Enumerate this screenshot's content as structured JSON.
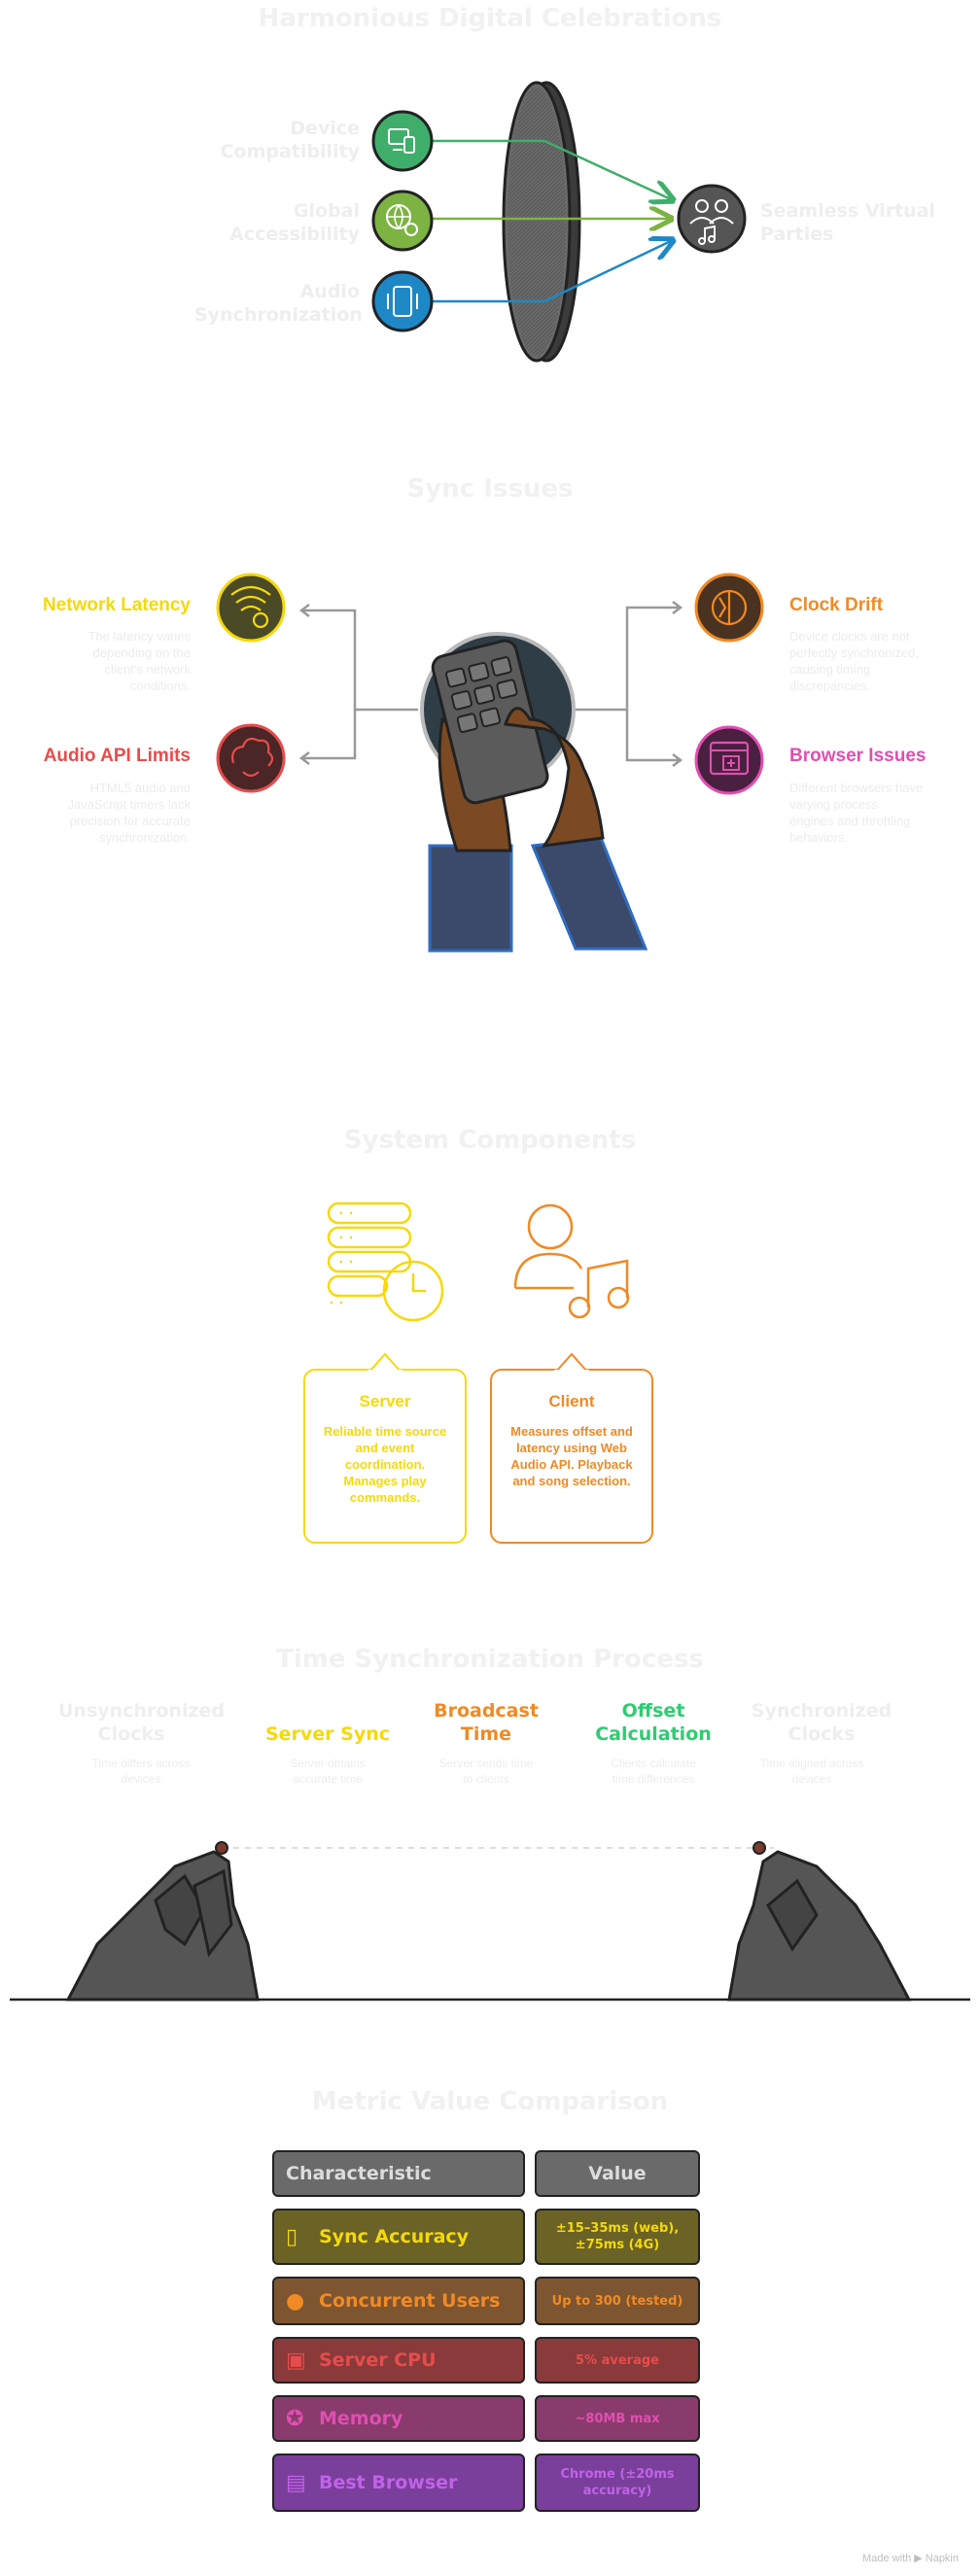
{
  "section1": {
    "title": "Harmonious Digital Celebrations",
    "inputs": [
      {
        "label_line1": "Device",
        "label_line2": "Compatibility",
        "icon": "devices-icon",
        "color": "#3fae6a"
      },
      {
        "label_line1": "Global",
        "label_line2": "Accessibility",
        "icon": "globe-gear-icon",
        "color": "#7cb342"
      },
      {
        "label_line1": "Audio",
        "label_line2": "Synchronization",
        "icon": "phone-vibrate-icon",
        "color": "#1e88c7"
      }
    ],
    "output": {
      "label_line1": "Seamless Virtual",
      "label_line2": "Parties",
      "icon": "people-music-icon"
    }
  },
  "section2": {
    "title": "Sync Issues",
    "items": [
      {
        "title": "Network Latency",
        "desc": [
          "The latency varies",
          "depending on the",
          "client's network",
          "conditions."
        ],
        "color": "#f5d90a",
        "icon": "wifi-gear-icon"
      },
      {
        "title": "Audio API Limits",
        "desc": [
          "HTML5 audio and",
          "JavaScript timers lack",
          "precision for accurate",
          "synchronization."
        ],
        "color": "#e74c4c",
        "icon": "cloud-refresh-icon"
      },
      {
        "title": "Clock Drift",
        "desc": [
          "Device clocks are not",
          "perfectly synchronized,",
          "causing timing",
          "discrepancies."
        ],
        "color": "#f08a24",
        "icon": "clock-half-icon"
      },
      {
        "title": "Browser Issues",
        "desc": [
          "Different browsers have",
          "varying process",
          "engines and throttling",
          "behaviors."
        ],
        "color": "#e04fb0",
        "icon": "browser-plus-icon"
      }
    ]
  },
  "section3": {
    "title": "System Components",
    "server": {
      "title": "Server",
      "desc": [
        "Reliable time source",
        "and event",
        "coordination.",
        "Manages play",
        "commands."
      ],
      "color": "#f5d90a",
      "icon": "server-clock-icon"
    },
    "client": {
      "title": "Client",
      "desc": [
        "Measures offset and",
        "latency using Web",
        "Audio API. Playback",
        "and song selection."
      ],
      "color": "#f08a24",
      "icon": "user-music-icon"
    }
  },
  "section4": {
    "title": "Time Synchronization Process",
    "steps": [
      {
        "head": [
          "Unsynchronized",
          "Clocks"
        ],
        "desc": [
          "Time differs across",
          "devices"
        ],
        "color": "#eeeeee"
      },
      {
        "head": [
          "Server Sync"
        ],
        "desc": [
          "Server obtains",
          "accurate time"
        ],
        "color": "#f5d90a"
      },
      {
        "head": [
          "Broadcast",
          "Time"
        ],
        "desc": [
          "Server sends time",
          "to clients"
        ],
        "color": "#f08a24"
      },
      {
        "head": [
          "Offset",
          "Calculation"
        ],
        "desc": [
          "Clients calculate",
          "time differences"
        ],
        "color": "#2ecc71"
      },
      {
        "head": [
          "Synchronized",
          "Clocks"
        ],
        "desc": [
          "Time aligned across",
          "devices"
        ],
        "color": "#eeeeee"
      }
    ]
  },
  "section5": {
    "title": "Metric Value Comparison",
    "header": {
      "characteristic": "Characteristic",
      "value": "Value"
    },
    "rows": [
      {
        "characteristic": "Sync Accuracy",
        "value_line1": "±15–35ms (web),",
        "value_line2": "±75ms (4G)",
        "bg": "#6b6226",
        "fg": "#f5d90a",
        "icon": "phone-grid-icon"
      },
      {
        "characteristic": "Concurrent Users",
        "value_line1": "Up to 300 (tested)",
        "value_line2": "",
        "bg": "#7d5530",
        "fg": "#f08a24",
        "icon": "user-refresh-icon"
      },
      {
        "characteristic": "Server CPU",
        "value_line1": "5% average",
        "value_line2": "",
        "bg": "#8a3a3a",
        "fg": "#e74c4c",
        "icon": "cpu-icon"
      },
      {
        "characteristic": "Memory",
        "value_line1": "~80MB max",
        "value_line2": "",
        "bg": "#8a3b6e",
        "fg": "#e04fb0",
        "icon": "star-badge-icon"
      },
      {
        "characteristic": "Best Browser",
        "value_line1": "Chrome (±20ms",
        "value_line2": "accuracy)",
        "bg": "#7a3f9a",
        "fg": "#c062e8",
        "icon": "browser-star-icon"
      }
    ]
  },
  "footer": "Made with ▶ Napkin"
}
